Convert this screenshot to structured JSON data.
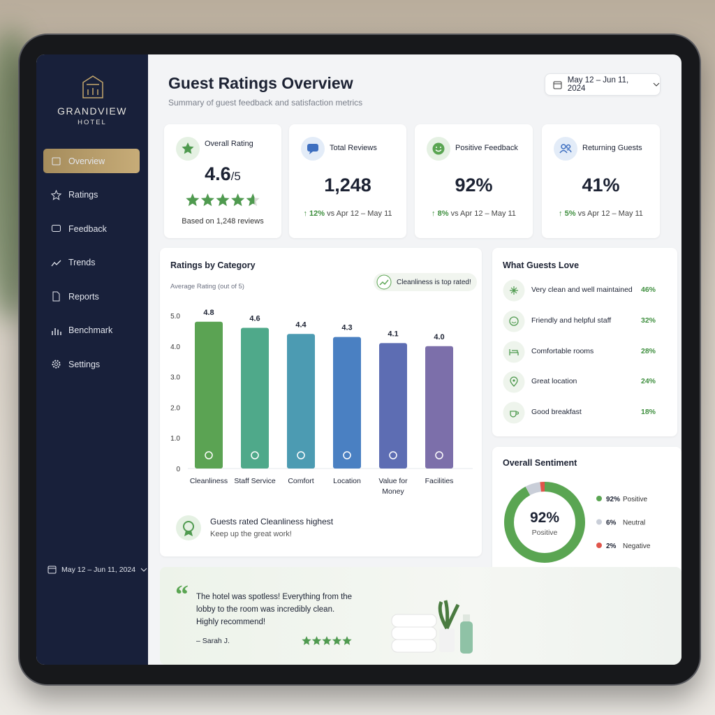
{
  "brand": {
    "name": "GRANDVIEW",
    "sub": "HOTEL"
  },
  "nav": [
    "Overview",
    "Ratings",
    "Feedback",
    "Trends",
    "Reports",
    "Benchmark",
    "Settings"
  ],
  "sidebar_date": "May 12 – Jun 11, 2024",
  "header": {
    "title": "Guest Ratings Overview",
    "subtitle": "Summary of guest feedback and satisfaction metrics",
    "date_range": "May 12 – Jun 11, 2024"
  },
  "kpis": [
    {
      "label": "Overall Rating",
      "value": 4.6,
      "suffix": "/5",
      "note": "Based on 1,248 reviews"
    },
    {
      "label": "Total Reviews",
      "value": "1,248",
      "change": "12%",
      "compare": "vs Apr 12 – May 11"
    },
    {
      "label": "Positive Feedback",
      "value": "92%",
      "change": "8%",
      "compare": "vs Apr 12 – May 11"
    },
    {
      "label": "Returning Guests",
      "value": "41%",
      "change": "5%",
      "compare": "vs Apr 12 – May 11"
    }
  ],
  "ratings_chart": {
    "type": "bar",
    "title": "Ratings by Category",
    "subtitle": "Average Rating (out of 5)",
    "badge": "Cleanliness is top rated!",
    "categories": [
      "Cleanliness",
      "Staff Service",
      "Comfort",
      "Location",
      "Value for Money",
      "Facilities"
    ],
    "values": [
      4.8,
      4.6,
      4.4,
      4.3,
      4.1,
      4.0
    ],
    "value_labels": [
      "4.8",
      "4.6",
      "4.4",
      "4.3",
      "4.1",
      "4.0"
    ],
    "colors": [
      "#5ba353",
      "#4fa98a",
      "#4c9bb2",
      "#4a80c2",
      "#5d6db3",
      "#7c6faa"
    ],
    "ylim": [
      0,
      5
    ],
    "yticks": [
      0,
      {
        "value": 1,
        "label": "1.0"
      },
      {
        "value": 2,
        "label": "2.0"
      },
      {
        "value": 3,
        "label": "3.0"
      },
      {
        "value": 4,
        "label": "4.0"
      },
      {
        "value": 5,
        "label": "5.0"
      }
    ],
    "grid": false,
    "footer_title": "Guests rated Cleanliness highest",
    "footer_text": "Keep up the great work!"
  },
  "love": {
    "title": "What Guests Love",
    "items": [
      {
        "label": "Very clean and well maintained",
        "value": "46%"
      },
      {
        "label": "Friendly and helpful staff",
        "value": "32%"
      },
      {
        "label": "Comfortable rooms",
        "value": "28%"
      },
      {
        "label": "Great location",
        "value": "24%"
      },
      {
        "label": "Good breakfast",
        "value": "18%"
      }
    ]
  },
  "sentiment": {
    "type": "donut",
    "title": "Overall Sentiment",
    "center_value": "92%",
    "center_label": "Positive",
    "segments": [
      {
        "name": "Positive",
        "value": 92,
        "label": "92%",
        "color": "#5aa552"
      },
      {
        "name": "Neutral",
        "value": 6,
        "label": "6%",
        "color": "#c9ced8"
      },
      {
        "name": "Negative",
        "value": 2,
        "label": "2%",
        "color": "#e0554b"
      }
    ]
  },
  "quote": {
    "text": "The hotel was spotless! Everything from the lobby to the room was incredibly clean. Highly recommend!",
    "author": "– Sarah J.",
    "rating": 5
  }
}
